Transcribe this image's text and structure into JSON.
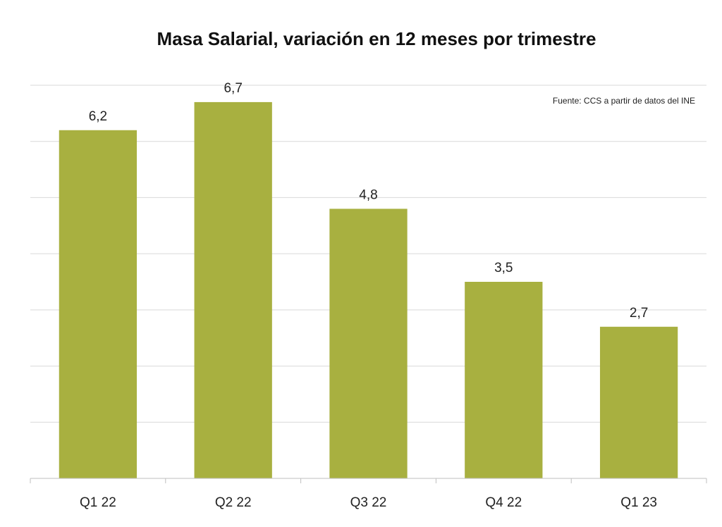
{
  "chart_data": {
    "type": "bar",
    "title": "Masa Salarial, variación en 12 meses por trimestre",
    "source": "Fuente: CCS a partir de datos del INE",
    "categories": [
      "Q1 22",
      "Q2 22",
      "Q3 22",
      "Q4 22",
      "Q1 23"
    ],
    "values": [
      6.2,
      6.7,
      4.8,
      3.5,
      2.7
    ],
    "value_labels": [
      "6,2",
      "6,7",
      "4,8",
      "3,5",
      "2,7"
    ],
    "xlabel": "",
    "ylabel": "",
    "ylim": [
      0,
      7
    ],
    "grid": true,
    "legend": "none",
    "colors": {
      "bar": "#a8b040",
      "grid": "#d9d9d9",
      "axis": "#bfbfbf"
    }
  }
}
